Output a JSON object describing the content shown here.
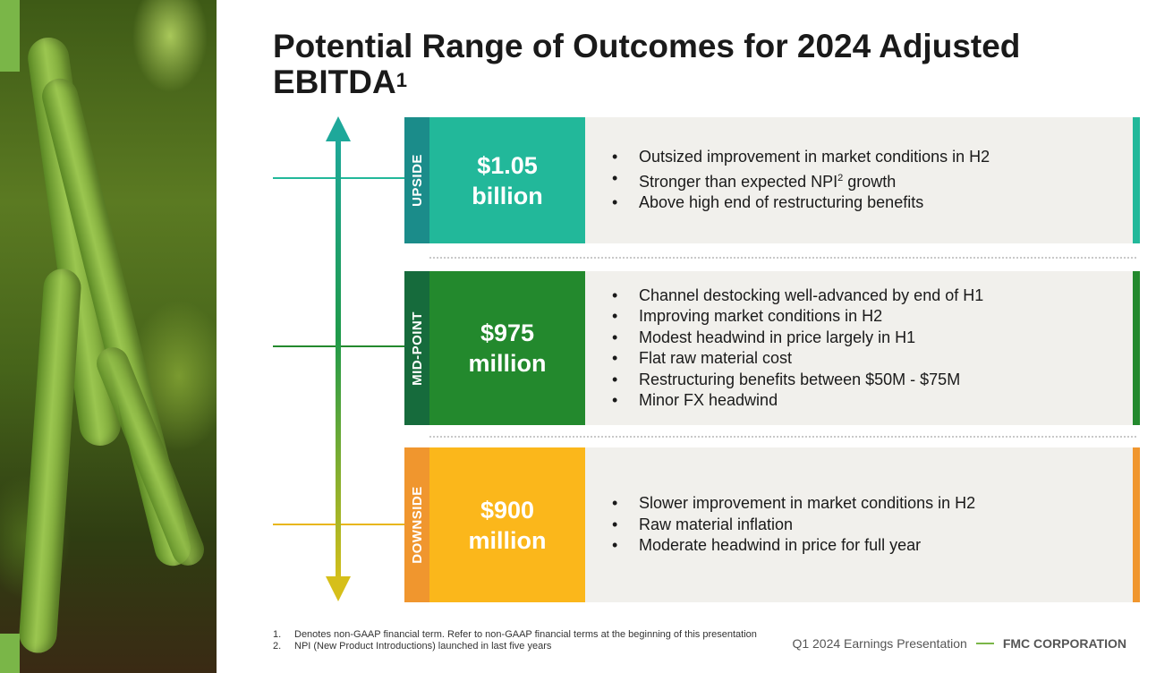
{
  "title": {
    "text": "Potential Range of Outcomes for 2024 Adjusted EBITDA",
    "superscript": "1"
  },
  "colors": {
    "upside_tab": "#1b8c8a",
    "upside_value": "#22b89a",
    "upside_edge": "#22b89a",
    "midpoint_tab": "#166b3c",
    "midpoint_value": "#23892d",
    "midpoint_edge": "#23892d",
    "downside_tab": "#f0962e",
    "downside_value": "#fbb71b",
    "downside_edge": "#f0962e",
    "description_bg": "#f1f0ec",
    "arrow_top": "#1ea89a",
    "arrow_bottom": "#d6bf1a"
  },
  "scenarios": [
    {
      "label": "UPSIDE",
      "value_line1": "$1.05",
      "value_line2": "billion",
      "bullets": [
        {
          "text": "Outsized improvement in market conditions in H2"
        },
        {
          "text": "Stronger than expected NPI",
          "sup": "2",
          "after": " growth"
        },
        {
          "text": "Above high end of restructuring benefits"
        }
      ]
    },
    {
      "label": "MID-POINT",
      "value_line1": "$975",
      "value_line2": "million",
      "bullets": [
        {
          "text": "Channel destocking well-advanced by end of H1"
        },
        {
          "text": "Improving market conditions in H2"
        },
        {
          "text": "Modest headwind in price largely in H1"
        },
        {
          "text": "Flat raw material cost"
        },
        {
          "text": "Restructuring benefits between $50M - $75M"
        },
        {
          "text": "Minor FX headwind"
        }
      ]
    },
    {
      "label": "DOWNSIDE",
      "value_line1": "$900",
      "value_line2": "million",
      "bullets": [
        {
          "text": "Slower improvement in market conditions in H2"
        },
        {
          "text": "Raw material inflation"
        },
        {
          "text": "Moderate headwind in price for full year"
        }
      ]
    }
  ],
  "footnotes": [
    {
      "num": "1.",
      "text": "Denotes non-GAAP financial term. Refer to non-GAAP financial terms at the beginning of this presentation"
    },
    {
      "num": "2.",
      "text": "NPI (New Product Introductions) launched in last five years"
    }
  ],
  "footer": {
    "presentation": "Q1 2024 Earnings Presentation",
    "company": "FMC CORPORATION"
  }
}
